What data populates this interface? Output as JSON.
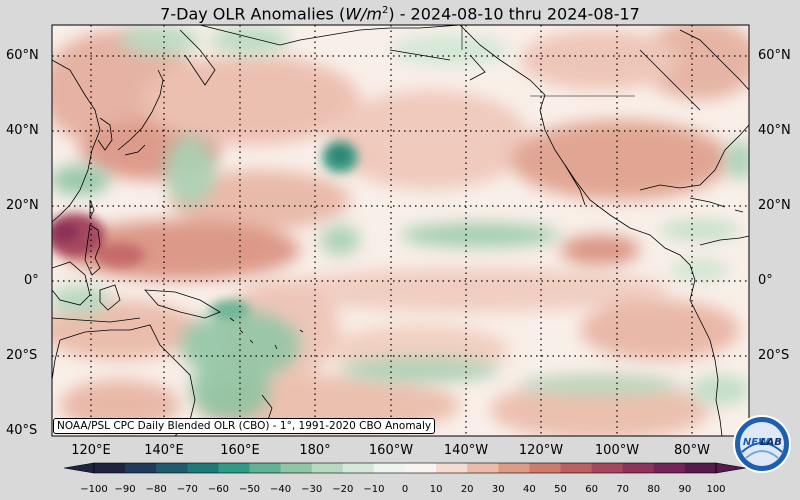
{
  "title": {
    "prefix": "7-Day OLR Anomalies (",
    "unit_base": "W/m",
    "unit_exp": "2",
    "suffix": ") - 2024-08-10 thru 2024-08-17"
  },
  "lat_labels": [
    "60°N",
    "40°N",
    "20°N",
    "0°",
    "20°S",
    "40°S"
  ],
  "lon_labels": [
    "120°E",
    "140°E",
    "160°E",
    "180°",
    "160°W",
    "140°W",
    "120°W",
    "100°W",
    "80°W"
  ],
  "credit": "NOAA/PSL CPC Daily Blended OLR (CBO) - 1°, 1991-2020 CBO Anomaly",
  "colorbar": {
    "ticks": [
      "−100",
      "−90",
      "−80",
      "−70",
      "−60",
      "−50",
      "−40",
      "−30",
      "−20",
      "−10",
      "0",
      "10",
      "20",
      "30",
      "40",
      "50",
      "60",
      "70",
      "80",
      "90",
      "100"
    ],
    "colors": [
      "#1d2440",
      "#1f3a5a",
      "#1f5a6e",
      "#1e7a78",
      "#2f9a86",
      "#5fb296",
      "#8ec6a6",
      "#b7d9bf",
      "#d6e9d8",
      "#eef5ef",
      "#fbf3ef",
      "#f5dcd0",
      "#ebbca9",
      "#de9c86",
      "#cf7b6c",
      "#bc5f60",
      "#a6475d",
      "#8e335d",
      "#74245a",
      "#561a4c"
    ]
  },
  "logo": {
    "text_main": "NEW",
    "text_accent": "LAB"
  },
  "map": {
    "ocean": "#f9efe9",
    "land_stroke": "#000000",
    "grid": "dotted"
  }
}
